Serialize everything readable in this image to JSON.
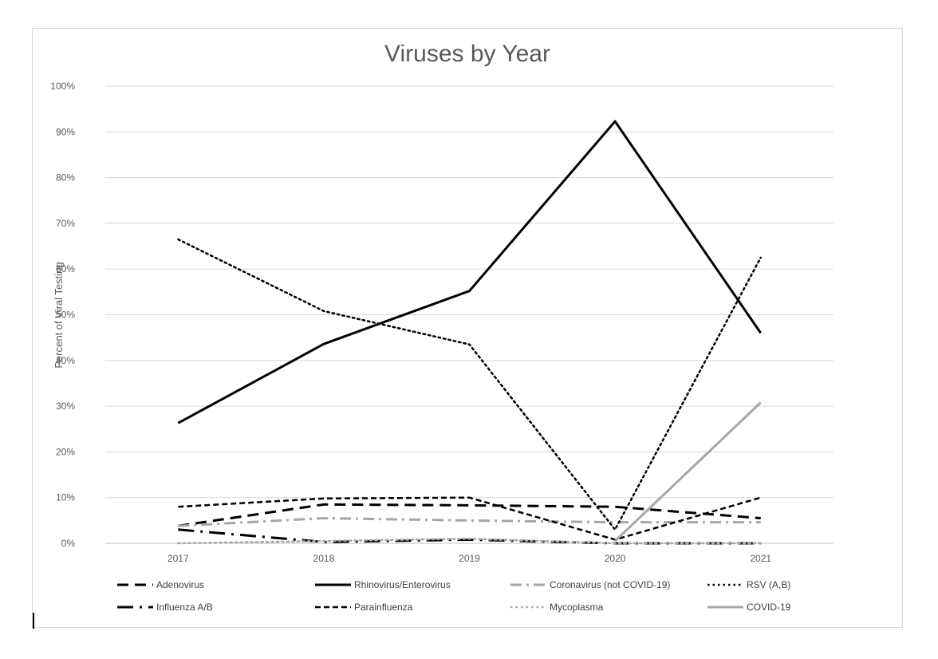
{
  "chart_data": {
    "type": "line",
    "title": "Viruses by Year",
    "xlabel": "",
    "ylabel": "Percent of Viral Testing",
    "categories": [
      "2017",
      "2018",
      "2019",
      "2020",
      "2021"
    ],
    "y_ticks": [
      "0%",
      "10%",
      "20%",
      "30%",
      "40%",
      "50%",
      "60%",
      "70%",
      "80%",
      "90%",
      "100%"
    ],
    "ylim": [
      0,
      100
    ],
    "grid": "horizontal",
    "legend_position": "bottom",
    "series": [
      {
        "name": "Adenovirus",
        "values": [
          3.8,
          8.5,
          8.3,
          8.0,
          5.5
        ],
        "color": "#000000",
        "dash": "dash",
        "width": 3
      },
      {
        "name": "Rhinovirus/Enterovirus",
        "values": [
          26.3,
          43.6,
          55.2,
          92.3,
          46.0
        ],
        "color": "#000000",
        "dash": "solid",
        "width": 3
      },
      {
        "name": "Coronavirus (not COVID-19)",
        "values": [
          3.8,
          5.5,
          5.0,
          4.6,
          4.6
        ],
        "color": "#a6a6a6",
        "dash": "dashdot",
        "width": 3
      },
      {
        "name": "RSV (A,B)",
        "values": [
          66.5,
          50.8,
          43.5,
          3.0,
          62.5
        ],
        "color": "#000000",
        "dash": "dot",
        "width": 2.5
      },
      {
        "name": "Influenza A/B",
        "values": [
          3.0,
          0.3,
          0.8,
          0.0,
          0.0
        ],
        "color": "#000000",
        "dash": "longdashdot",
        "width": 3
      },
      {
        "name": "Parainfluenza",
        "values": [
          8.0,
          9.8,
          10.0,
          0.8,
          10.0
        ],
        "color": "#000000",
        "dash": "shortdash",
        "width": 2.5
      },
      {
        "name": "Mycoplasma",
        "values": [
          0.0,
          0.5,
          1.0,
          0.0,
          0.0
        ],
        "color": "#a6a6a6",
        "dash": "dot",
        "width": 2.5
      },
      {
        "name": "COVID-19",
        "values": [
          null,
          null,
          null,
          0.5,
          30.8
        ],
        "color": "#a6a6a6",
        "dash": "solid",
        "width": 3
      }
    ]
  }
}
